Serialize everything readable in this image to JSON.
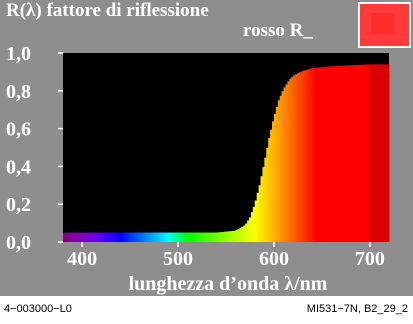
{
  "header": {
    "title": "R(λ) fattore di riflessione",
    "subtitle": "rosso R_"
  },
  "colors": {
    "panel": "#8e8e8e",
    "plot_background": "#000000",
    "swatch": "#ff3a3a",
    "swatch_inner": "#ff2a2a",
    "text": "#ffffff"
  },
  "footer": {
    "left": "4−003000−L0",
    "right": "MI531−7N, B2_29_2"
  },
  "chart_data": {
    "type": "area",
    "title": "R(λ) fattore di riflessione",
    "subtitle": "rosso R_",
    "xlabel": "lunghezza d’onda λ/nm",
    "ylabel": "",
    "xlim": [
      380,
      720
    ],
    "ylim": [
      0,
      1.0
    ],
    "xticks": [
      400,
      500,
      600,
      700
    ],
    "yticks": [
      0.0,
      0.2,
      0.4,
      0.6,
      0.8,
      1.0
    ],
    "xtick_labels": [
      "400",
      "500",
      "600",
      "700"
    ],
    "ytick_labels": [
      "0,0",
      "0,2",
      "0,4",
      "0,6",
      "0,8",
      "1,0"
    ],
    "fill": "spectral colors",
    "grid": false,
    "series": [
      {
        "x": [
          380,
          400,
          420,
          440,
          460,
          480,
          500,
          520,
          540,
          560,
          570,
          575,
          580,
          585,
          590,
          595,
          600,
          605,
          610,
          615,
          620,
          630,
          640,
          650,
          660,
          680,
          700,
          720
        ],
        "values": [
          0.05,
          0.05,
          0.05,
          0.05,
          0.05,
          0.05,
          0.05,
          0.05,
          0.05,
          0.06,
          0.09,
          0.13,
          0.2,
          0.3,
          0.42,
          0.55,
          0.66,
          0.75,
          0.81,
          0.85,
          0.88,
          0.905,
          0.92,
          0.925,
          0.93,
          0.935,
          0.94,
          0.94
        ]
      }
    ]
  }
}
